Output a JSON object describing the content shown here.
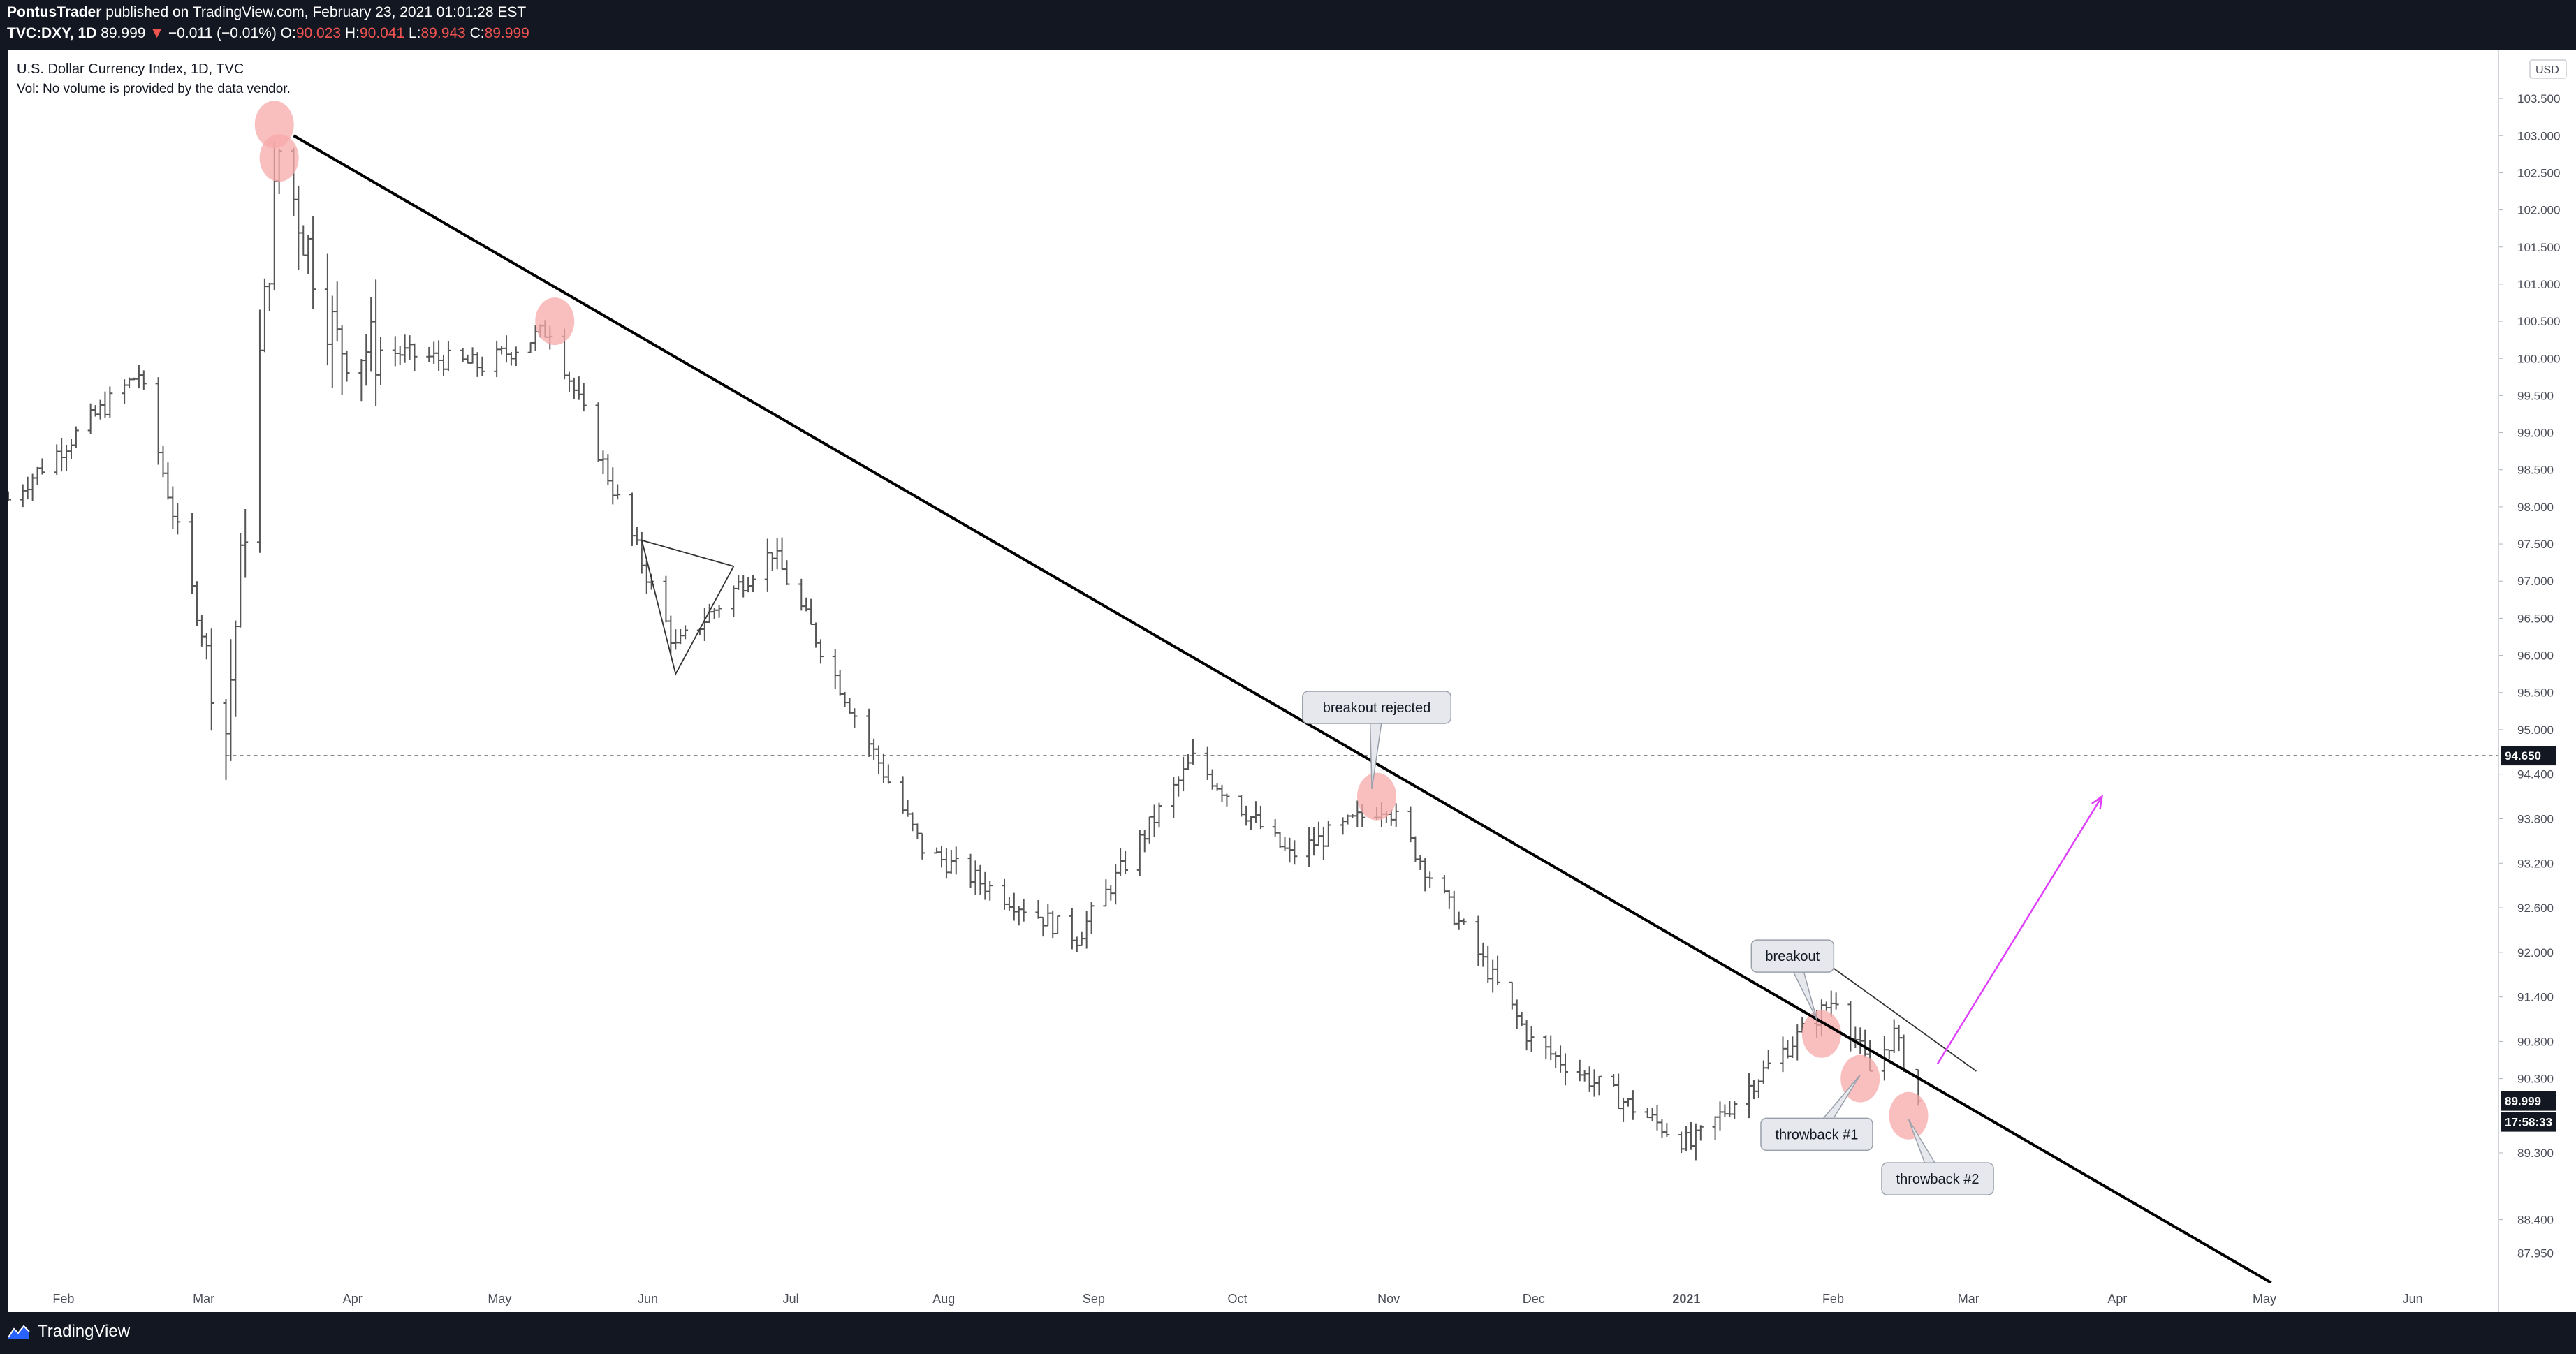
{
  "header": {
    "publisher": "PontusTrader",
    "published_text": "published on TradingView.com, February 23, 2021 01:01:28 EST",
    "symbol_line": "TVC:DXY, 1D",
    "last": "89.999",
    "change_arrow": "▼",
    "change": "−0.011 (−0.01%)",
    "o_label": "O:",
    "o_value": "90.023",
    "h_label": "H:",
    "h_value": "90.041",
    "l_label": "L:",
    "l_value": "89.943",
    "c_label": "C:",
    "c_value": "89.999"
  },
  "legend": {
    "title": "U.S. Dollar Currency Index, 1D, TVC",
    "volume_note": "Vol: No volume is provided by the data vendor."
  },
  "currency_label": "USD",
  "footer": {
    "brand": "TradingView"
  },
  "colors": {
    "background": "#131722",
    "chart_bg": "#ffffff",
    "bars": "#555555",
    "trendline": "#000000",
    "arrow": "#e040fb",
    "highlight": "#f7a8a8",
    "price_badge": "#131722"
  },
  "chart_data": {
    "type": "ohlc",
    "title": "U.S. Dollar Currency Index, 1D, TVC",
    "ylim": [
      87.55,
      104.15
    ],
    "ytick_labels": [
      "88.400",
      "89.300",
      "90.300",
      "90.800",
      "91.400",
      "92.000",
      "92.600",
      "93.200",
      "93.800",
      "94.400",
      "95.000",
      "95.500",
      "96.000",
      "96.500",
      "97.000",
      "97.500",
      "98.000",
      "98.500",
      "99.000",
      "99.500",
      "100.000",
      "100.500",
      "101.000",
      "101.500",
      "102.000",
      "102.500",
      "103.000",
      "103.500"
    ],
    "ytick_partial": "10",
    "ytick_partial_low": "87.950",
    "x_start": "2020-01-24",
    "x_end": "2021-06-22",
    "month_labels": [
      {
        "label": "Feb",
        "date": "2020-02-01"
      },
      {
        "label": "Mar",
        "date": "2020-03-01"
      },
      {
        "label": "Apr",
        "date": "2020-04-01"
      },
      {
        "label": "May",
        "date": "2020-05-01"
      },
      {
        "label": "Jun",
        "date": "2020-06-01"
      },
      {
        "label": "Jul",
        "date": "2020-07-01"
      },
      {
        "label": "Aug",
        "date": "2020-08-01"
      },
      {
        "label": "Sep",
        "date": "2020-09-01"
      },
      {
        "label": "Oct",
        "date": "2020-10-01"
      },
      {
        "label": "Nov",
        "date": "2020-11-01"
      },
      {
        "label": "Dec",
        "date": "2020-12-01"
      },
      {
        "label": "2021",
        "date": "2021-01-01",
        "bold": true
      },
      {
        "label": "Feb",
        "date": "2021-02-01"
      },
      {
        "label": "Mar",
        "date": "2021-03-01"
      },
      {
        "label": "Apr",
        "date": "2021-04-01"
      },
      {
        "label": "May",
        "date": "2021-05-01"
      },
      {
        "label": "Jun",
        "date": "2021-06-01"
      }
    ],
    "close_path": [
      {
        "date": "2020-01-24",
        "close": 98.1
      },
      {
        "date": "2020-02-20",
        "close": 99.8
      },
      {
        "date": "2020-03-09",
        "close": 95.0
      },
      {
        "date": "2020-03-20",
        "close": 102.8
      },
      {
        "date": "2020-04-01",
        "close": 100.2
      },
      {
        "date": "2020-05-01",
        "close": 99.9
      },
      {
        "date": "2020-05-15",
        "close": 100.4
      },
      {
        "date": "2020-06-10",
        "close": 96.1
      },
      {
        "date": "2020-06-30",
        "close": 97.4
      },
      {
        "date": "2020-07-31",
        "close": 93.4
      },
      {
        "date": "2020-09-01",
        "close": 92.2
      },
      {
        "date": "2020-09-25",
        "close": 94.6
      },
      {
        "date": "2020-10-15",
        "close": 93.3
      },
      {
        "date": "2020-11-04",
        "close": 94.0
      },
      {
        "date": "2020-12-04",
        "close": 90.8
      },
      {
        "date": "2021-01-06",
        "close": 89.4
      },
      {
        "date": "2021-02-05",
        "close": 91.4
      },
      {
        "date": "2021-02-12",
        "close": 90.4
      },
      {
        "date": "2021-02-17",
        "close": 90.9
      },
      {
        "date": "2021-02-22",
        "close": 89.999
      }
    ],
    "horizontal_line": {
      "price": 94.65,
      "label": "94.650",
      "from": "2020-03-09"
    },
    "last_price": {
      "price": 89.999,
      "label": "89.999",
      "countdown": "17:58:33"
    },
    "trendline": {
      "from": {
        "date": "2020-03-23",
        "price": 103.0
      },
      "to": {
        "date": "2021-05-06",
        "price": 87.55
      }
    },
    "triangle": [
      {
        "date": "2020-06-03",
        "price": 97.55
      },
      {
        "date": "2020-06-22",
        "price": 97.2
      },
      {
        "date": "2020-06-10",
        "price": 95.75
      }
    ],
    "wedge_line": {
      "from": {
        "date": "2021-02-01",
        "price": 91.95
      },
      "to": {
        "date": "2021-03-06",
        "price": 90.4
      }
    },
    "projection_arrow": {
      "from": {
        "date": "2021-02-26",
        "price": 90.5
      },
      "to": {
        "date": "2021-04-01",
        "price": 94.1
      }
    },
    "highlights": [
      {
        "date": "2020-03-19",
        "price": 103.15
      },
      {
        "date": "2020-03-20",
        "price": 102.7
      },
      {
        "date": "2020-05-16",
        "price": 100.5
      },
      {
        "date": "2020-11-02",
        "price": 94.1
      },
      {
        "date": "2021-02-02",
        "price": 90.9
      },
      {
        "date": "2021-02-10",
        "price": 90.3
      },
      {
        "date": "2021-02-20",
        "price": 89.8
      }
    ],
    "annotations": [
      {
        "text": "breakout rejected",
        "box_date": "2020-11-02",
        "box_price": 95.3,
        "point_date": "2020-11-01",
        "point_price": 94.2
      },
      {
        "text": "breakout",
        "box_date": "2021-01-27",
        "box_price": 91.95,
        "point_date": "2021-02-01",
        "point_price": 91.1
      },
      {
        "text": "throwback #1",
        "box_date": "2021-02-01",
        "box_price": 89.55,
        "point_date": "2021-02-10",
        "point_price": 90.35
      },
      {
        "text": "throwback #2",
        "box_date": "2021-02-26",
        "box_price": 88.95,
        "point_date": "2021-02-20",
        "point_price": 89.75
      }
    ]
  }
}
